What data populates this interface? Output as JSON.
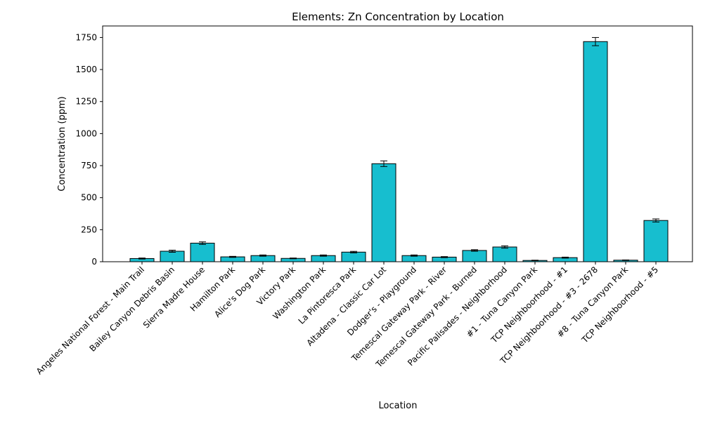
{
  "chart_data": {
    "type": "bar",
    "title": "Elements: Zn Concentration by Location",
    "xlabel": "Location",
    "ylabel": "Concentration (ppm)",
    "ylim": [
      0,
      1840
    ],
    "yticks": [
      0,
      250,
      500,
      750,
      1000,
      1250,
      1500,
      1750
    ],
    "grid": false,
    "bar_color": "#17becf",
    "categories": [
      "Angeles National Forest - Main Trail",
      "Bailey Canyon Debris Basin",
      "Sierra Madre House",
      "Hamilton Park",
      "Alice's Dog Park",
      "Victory Park",
      "Washington Park",
      "La Pintoresca Park",
      "Altadena - Classic Car Lot",
      "Dodger's - Playground",
      "Temescal Gateway Park - River",
      "Temescal Gateway Park - Burned",
      "Pacific Palisades - Neighborhood",
      "#1 - Tuna Canyon Park",
      "TCP Neighboorhood - #1",
      "TCP Neighboorhood - #3 - 2678",
      "#8 - Tuna Canyon Park",
      "TCP Neighboorhood - #5"
    ],
    "values": [
      25,
      82,
      145,
      38,
      48,
      26,
      48,
      75,
      765,
      48,
      36,
      88,
      115,
      10,
      32,
      1718,
      12,
      322
    ],
    "errors": [
      4,
      8,
      10,
      4,
      5,
      3,
      5,
      6,
      22,
      5,
      4,
      6,
      9,
      2,
      4,
      32,
      2,
      12
    ]
  }
}
